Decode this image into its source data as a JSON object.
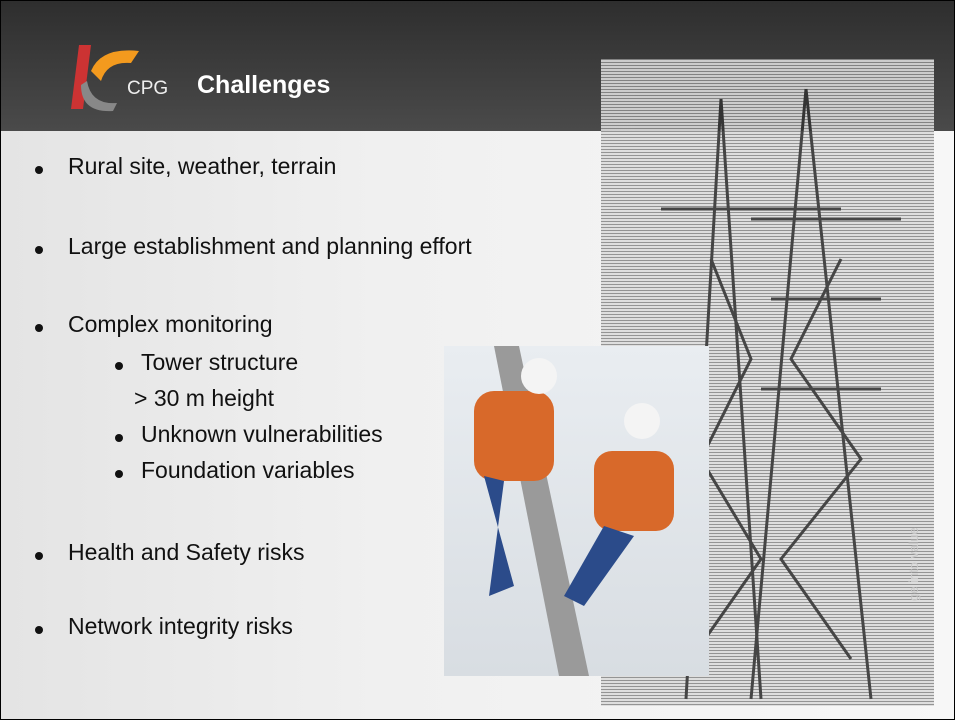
{
  "header": {
    "logo_text": "CPG",
    "title": "Challenges"
  },
  "bullets": [
    {
      "text": "Rural site, weather, terrain"
    },
    {
      "text": "Large establishment and planning effort"
    },
    {
      "text": "Complex monitoring",
      "sub": [
        {
          "text": "Tower structure",
          "note": "> 30 m height"
        },
        {
          "text": "Unknown vulnerabilities"
        },
        {
          "text": "Foundation variables"
        }
      ]
    },
    {
      "text": "Health and Safety risks"
    },
    {
      "text": "Network integrity risks"
    }
  ],
  "watermark": "ge into value"
}
